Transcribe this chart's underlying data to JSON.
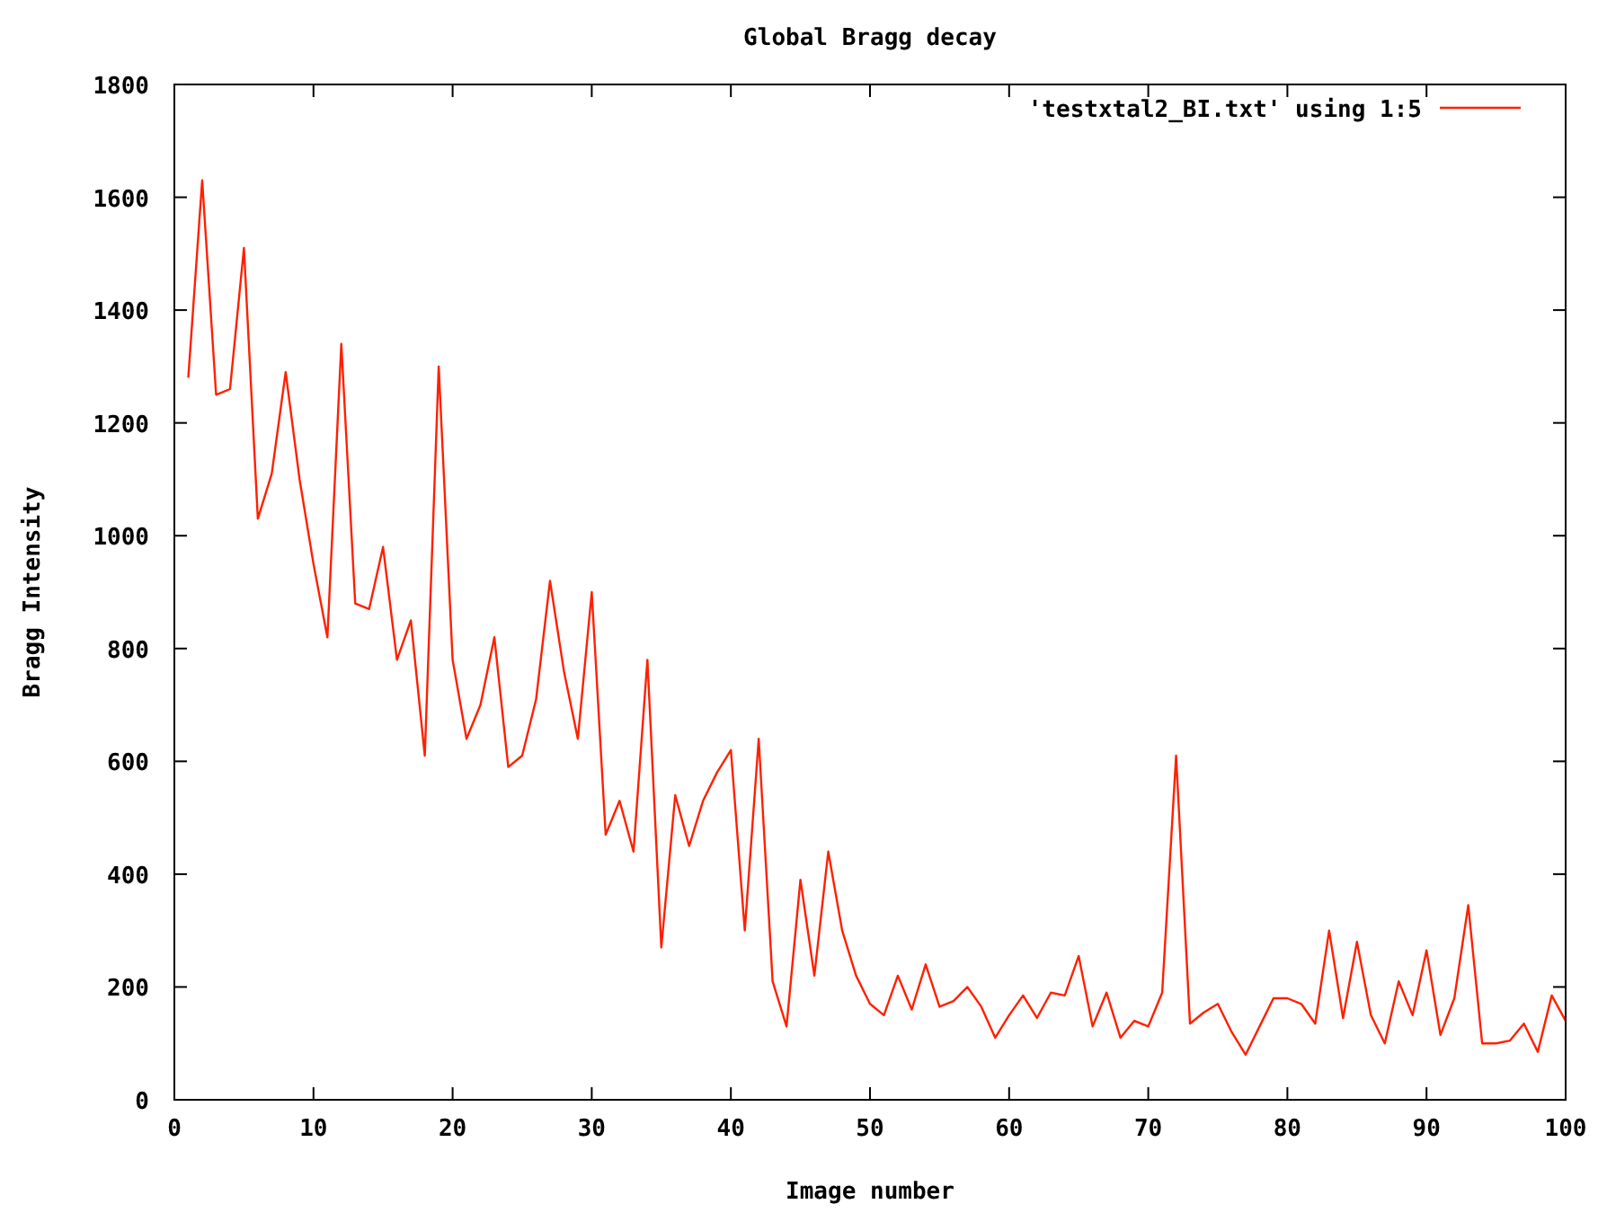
{
  "chart_data": {
    "type": "line",
    "title": "Global Bragg decay",
    "xlabel": "Image number",
    "ylabel": "Bragg Intensity",
    "x": [
      1,
      2,
      3,
      4,
      5,
      6,
      7,
      8,
      9,
      10,
      11,
      12,
      13,
      14,
      15,
      16,
      17,
      18,
      19,
      20,
      21,
      22,
      23,
      24,
      25,
      26,
      27,
      28,
      29,
      30,
      31,
      32,
      33,
      34,
      35,
      36,
      37,
      38,
      39,
      40,
      41,
      42,
      43,
      44,
      45,
      46,
      47,
      48,
      49,
      50,
      51,
      52,
      53,
      54,
      55,
      56,
      57,
      58,
      59,
      60,
      61,
      62,
      63,
      64,
      65,
      66,
      67,
      68,
      69,
      70,
      71,
      72,
      73,
      74,
      75,
      76,
      77,
      78,
      79,
      80,
      81,
      82,
      83,
      84,
      85,
      86,
      87,
      88,
      89,
      90,
      91,
      92,
      93,
      94,
      95,
      96,
      97,
      98,
      99,
      100
    ],
    "series": [
      {
        "name": "'testxtal2_BI.txt' using 1:5",
        "color": "#ff2000",
        "values": [
          1280,
          1630,
          1250,
          1260,
          1510,
          1030,
          1110,
          1290,
          1100,
          950,
          820,
          1340,
          880,
          870,
          980,
          780,
          850,
          610,
          1300,
          780,
          640,
          700,
          820,
          590,
          610,
          710,
          920,
          760,
          640,
          900,
          470,
          530,
          440,
          780,
          270,
          540,
          450,
          530,
          580,
          620,
          300,
          640,
          210,
          130,
          390,
          220,
          440,
          300,
          220,
          170,
          150,
          220,
          160,
          240,
          165,
          175,
          200,
          165,
          110,
          150,
          185,
          145,
          190,
          185,
          255,
          130,
          190,
          110,
          140,
          130,
          190,
          610,
          135,
          155,
          170,
          120,
          80,
          130,
          180,
          180,
          170,
          135,
          300,
          145,
          280,
          150,
          100,
          210,
          150,
          265,
          115,
          180,
          345,
          100,
          100,
          105,
          135,
          85,
          185,
          140
        ]
      }
    ],
    "xlim": [
      0,
      100
    ],
    "ylim": [
      0,
      1800
    ],
    "xticks": [
      0,
      10,
      20,
      30,
      40,
      50,
      60,
      70,
      80,
      90,
      100
    ],
    "yticks": [
      0,
      200,
      400,
      600,
      800,
      1000,
      1200,
      1400,
      1600,
      1800
    ],
    "grid": false,
    "legend": "top right",
    "marker": "none",
    "line_style": "solid"
  }
}
